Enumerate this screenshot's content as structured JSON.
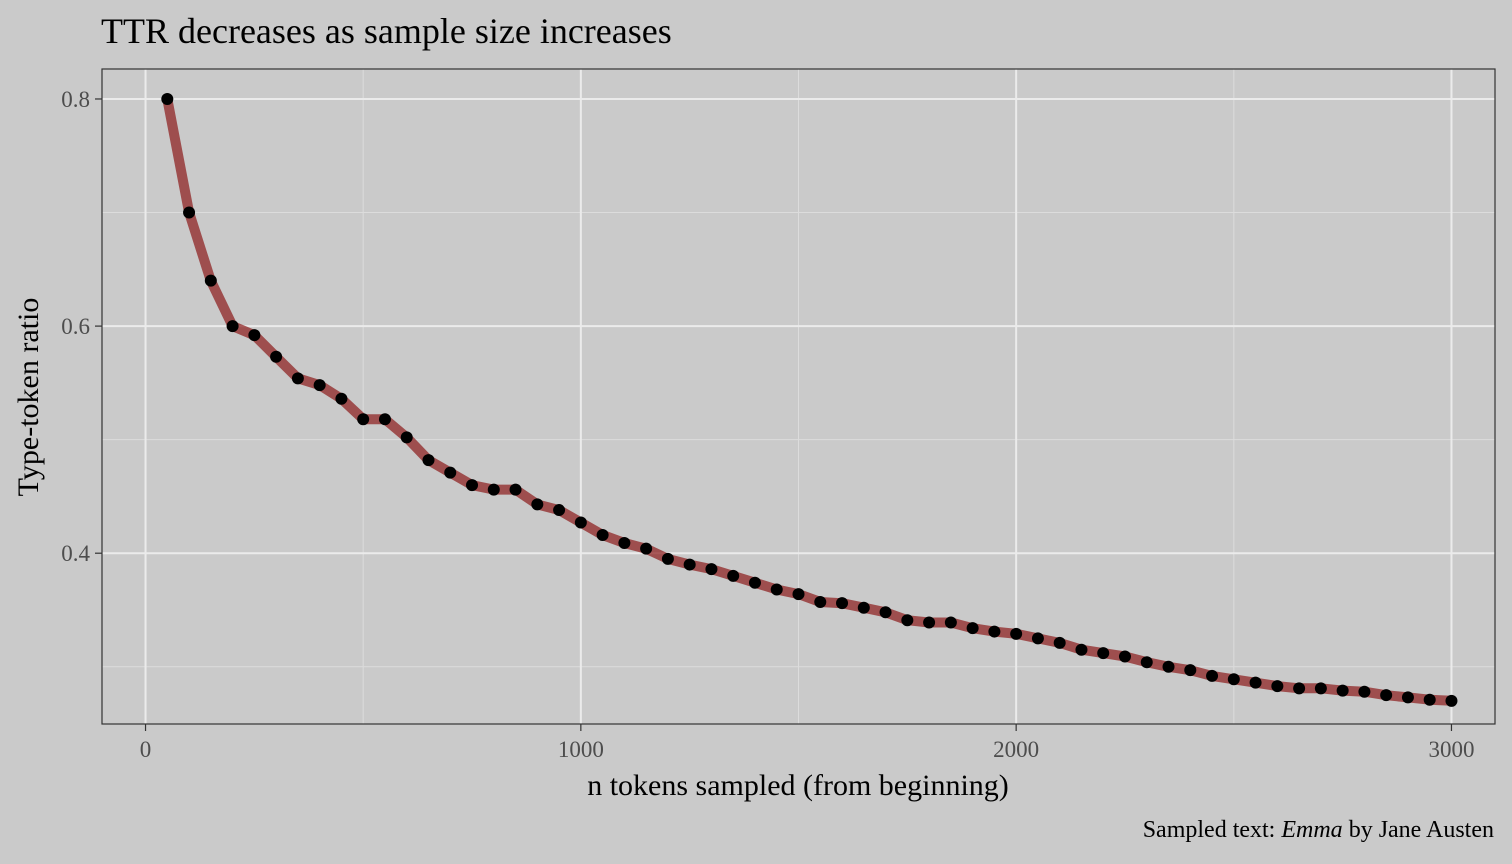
{
  "colors": {
    "background": "#cacaca",
    "panel": "#cacaca",
    "grid_major": "#ebebeb",
    "grid_minor": "#dcdcdc",
    "panel_border": "#333333",
    "line": "#8b1a1a",
    "point": "#000000",
    "tick_label": "#4d4d4d"
  },
  "caption": {
    "prefix": "Sampled text: ",
    "title": "Emma",
    "suffix": " by Jane Austen"
  },
  "chart_data": {
    "type": "line",
    "title": "TTR decreases as sample size increases",
    "xlabel": "n tokens sampled (from beginning)",
    "ylabel": "Type-token ratio",
    "xlim": [
      -100,
      3100
    ],
    "ylim": [
      0.2496,
      0.8264
    ],
    "xticks": [
      0,
      1000,
      2000,
      3000
    ],
    "xtick_labels": [
      "0",
      "1000",
      "2000",
      "3000"
    ],
    "yticks": [
      0.4,
      0.6,
      0.8
    ],
    "ytick_labels": [
      "0.4",
      "0.6",
      "0.8"
    ],
    "x_minor": [
      500,
      1500,
      2500
    ],
    "y_minor": [
      0.3,
      0.5,
      0.7
    ],
    "grid": true,
    "legend": "none",
    "series": [
      {
        "x": [
          50,
          100,
          150,
          200,
          250,
          300,
          350,
          400,
          450,
          500,
          550,
          600,
          650,
          700,
          750,
          800,
          850,
          900,
          950,
          1000,
          1050,
          1100,
          1150,
          1200,
          1250,
          1300,
          1350,
          1400,
          1450,
          1500,
          1550,
          1600,
          1650,
          1700,
          1750,
          1800,
          1850,
          1900,
          1950,
          2000,
          2050,
          2100,
          2150,
          2200,
          2250,
          2300,
          2350,
          2400,
          2450,
          2500,
          2550,
          2600,
          2650,
          2700,
          2750,
          2800,
          2850,
          2900,
          2950,
          3000
        ],
        "y": [
          0.8,
          0.7,
          0.64,
          0.6,
          0.592,
          0.573,
          0.554,
          0.548,
          0.536,
          0.518,
          0.518,
          0.502,
          0.482,
          0.471,
          0.46,
          0.456,
          0.456,
          0.443,
          0.438,
          0.427,
          0.416,
          0.409,
          0.404,
          0.395,
          0.39,
          0.386,
          0.38,
          0.374,
          0.368,
          0.364,
          0.357,
          0.356,
          0.352,
          0.348,
          0.341,
          0.339,
          0.339,
          0.334,
          0.331,
          0.329,
          0.325,
          0.321,
          0.315,
          0.312,
          0.309,
          0.304,
          0.3,
          0.297,
          0.292,
          0.289,
          0.286,
          0.283,
          0.281,
          0.281,
          0.279,
          0.278,
          0.275,
          0.273,
          0.271,
          0.27
        ]
      }
    ]
  }
}
